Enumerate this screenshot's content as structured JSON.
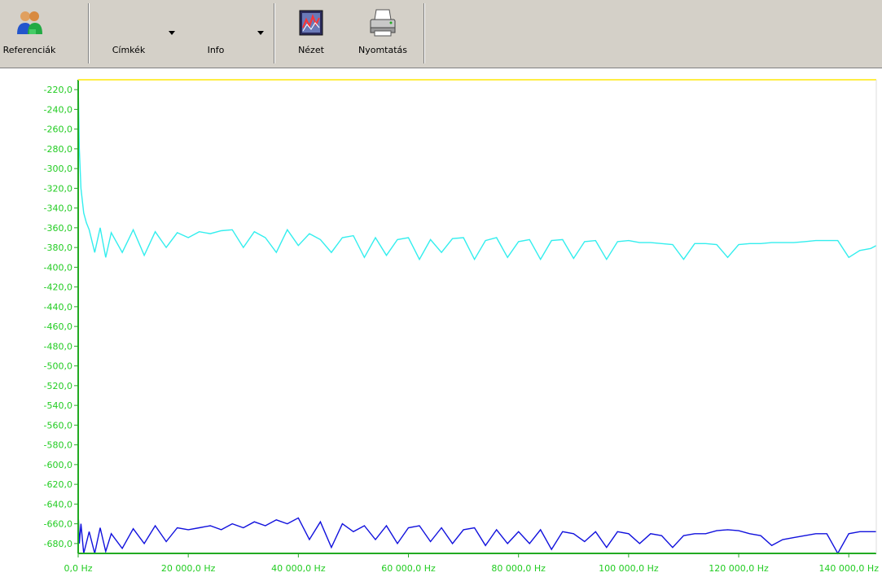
{
  "toolbar": {
    "buttons": [
      {
        "label": "Referenciák",
        "icon": "users-icon"
      },
      {
        "label": "Címkék",
        "icon": "dropdown-arrow-icon"
      },
      {
        "label": "Info",
        "icon": "dropdown-arrow-icon"
      },
      {
        "label": "Nézet",
        "icon": "chart-view-icon"
      },
      {
        "label": "Nyomtatás",
        "icon": "printer-icon"
      }
    ]
  },
  "chart_data": {
    "type": "line",
    "title": "",
    "xlabel": "",
    "ylabel": "",
    "xlim": [
      0,
      145000
    ],
    "ylim": [
      -690,
      -210
    ],
    "grid": false,
    "x_ticks": [
      0,
      20000,
      40000,
      60000,
      80000,
      100000,
      120000,
      140000
    ],
    "x_tick_labels": [
      "0,0 Hz",
      "20 000,0 Hz",
      "40 000,0 Hz",
      "60 000,0 Hz",
      "80 000,0 Hz",
      "100 000,0 Hz",
      "120 000,0 Hz",
      "140 000,0 Hz"
    ],
    "y_ticks": [
      -220,
      -240,
      -260,
      -280,
      -300,
      -320,
      -340,
      -360,
      -380,
      -400,
      -420,
      -440,
      -460,
      -480,
      -500,
      -520,
      -540,
      -560,
      -580,
      -600,
      -620,
      -640,
      -660,
      -680
    ],
    "y_tick_labels": [
      "-220,0",
      "-240,0",
      "-260,0",
      "-280,0",
      "-300,0",
      "-320,0",
      "-340,0",
      "-360,0",
      "-380,0",
      "-400,0",
      "-420,0",
      "-440,0",
      "-460,0",
      "-480,0",
      "-500,0",
      "-520,0",
      "-540,0",
      "-560,0",
      "-580,0",
      "-600,0",
      "-620,0",
      "-640,0",
      "-660,0",
      "-680,0"
    ],
    "axis_color": "#22aa22",
    "top_line_color": "#ffee44",
    "series": [
      {
        "color": "#33eeee",
        "x": [
          0,
          200,
          500,
          1000,
          1500,
          2000,
          3000,
          4000,
          5000,
          6000,
          8000,
          10000,
          12000,
          14000,
          16000,
          18000,
          20000,
          22000,
          24000,
          26000,
          28000,
          30000,
          32000,
          34000,
          36000,
          38000,
          40000,
          42000,
          44000,
          46000,
          48000,
          50000,
          52000,
          54000,
          56000,
          58000,
          60000,
          62000,
          64000,
          66000,
          68000,
          70000,
          72000,
          74000,
          76000,
          78000,
          80000,
          82000,
          84000,
          86000,
          88000,
          90000,
          92000,
          94000,
          96000,
          98000,
          100000,
          102000,
          104000,
          106000,
          108000,
          110000,
          112000,
          114000,
          116000,
          118000,
          120000,
          122000,
          124000,
          126000,
          128000,
          130000,
          132000,
          134000,
          136000,
          138000,
          140000,
          142000,
          144000,
          145000
        ],
        "y": [
          -212,
          -280,
          -320,
          -345,
          -355,
          -362,
          -385,
          -360,
          -390,
          -365,
          -385,
          -362,
          -388,
          -364,
          -380,
          -365,
          -370,
          -364,
          -366,
          -363,
          -362,
          -380,
          -364,
          -370,
          -385,
          -362,
          -378,
          -366,
          -372,
          -385,
          -370,
          -368,
          -390,
          -370,
          -388,
          -372,
          -370,
          -392,
          -372,
          -385,
          -371,
          -370,
          -392,
          -373,
          -370,
          -390,
          -374,
          -372,
          -392,
          -373,
          -372,
          -391,
          -374,
          -373,
          -392,
          -374,
          -373,
          -375,
          -375,
          -376,
          -377,
          -392,
          -376,
          -376,
          -377,
          -390,
          -377,
          -376,
          -376,
          -375,
          -375,
          -375,
          -374,
          -373,
          -373,
          -373,
          -390,
          -383,
          -381,
          -378
        ]
      },
      {
        "color": "#1111dd",
        "x": [
          0,
          200,
          500,
          1000,
          2000,
          3000,
          4000,
          5000,
          6000,
          8000,
          10000,
          12000,
          14000,
          16000,
          18000,
          20000,
          22000,
          24000,
          26000,
          28000,
          30000,
          32000,
          34000,
          36000,
          38000,
          40000,
          42000,
          44000,
          46000,
          48000,
          50000,
          52000,
          54000,
          56000,
          58000,
          60000,
          62000,
          64000,
          66000,
          68000,
          70000,
          72000,
          74000,
          76000,
          78000,
          80000,
          82000,
          84000,
          86000,
          88000,
          90000,
          92000,
          94000,
          96000,
          98000,
          100000,
          102000,
          104000,
          106000,
          108000,
          110000,
          112000,
          114000,
          116000,
          118000,
          120000,
          122000,
          124000,
          126000,
          128000,
          130000,
          132000,
          134000,
          136000,
          138000,
          140000,
          142000,
          144000,
          145000
        ],
        "y": [
          -648,
          -680,
          -660,
          -690,
          -668,
          -690,
          -664,
          -688,
          -670,
          -685,
          -665,
          -680,
          -662,
          -678,
          -664,
          -666,
          -664,
          -662,
          -666,
          -660,
          -664,
          -658,
          -662,
          -656,
          -660,
          -654,
          -676,
          -658,
          -684,
          -660,
          -668,
          -662,
          -676,
          -662,
          -680,
          -664,
          -662,
          -678,
          -664,
          -680,
          -666,
          -664,
          -682,
          -666,
          -680,
          -668,
          -680,
          -666,
          -686,
          -668,
          -670,
          -678,
          -668,
          -684,
          -668,
          -670,
          -680,
          -670,
          -672,
          -684,
          -672,
          -670,
          -670,
          -667,
          -666,
          -667,
          -670,
          -672,
          -682,
          -676,
          -674,
          -672,
          -670,
          -670,
          -690,
          -670,
          -668,
          -668,
          -668
        ]
      }
    ]
  }
}
